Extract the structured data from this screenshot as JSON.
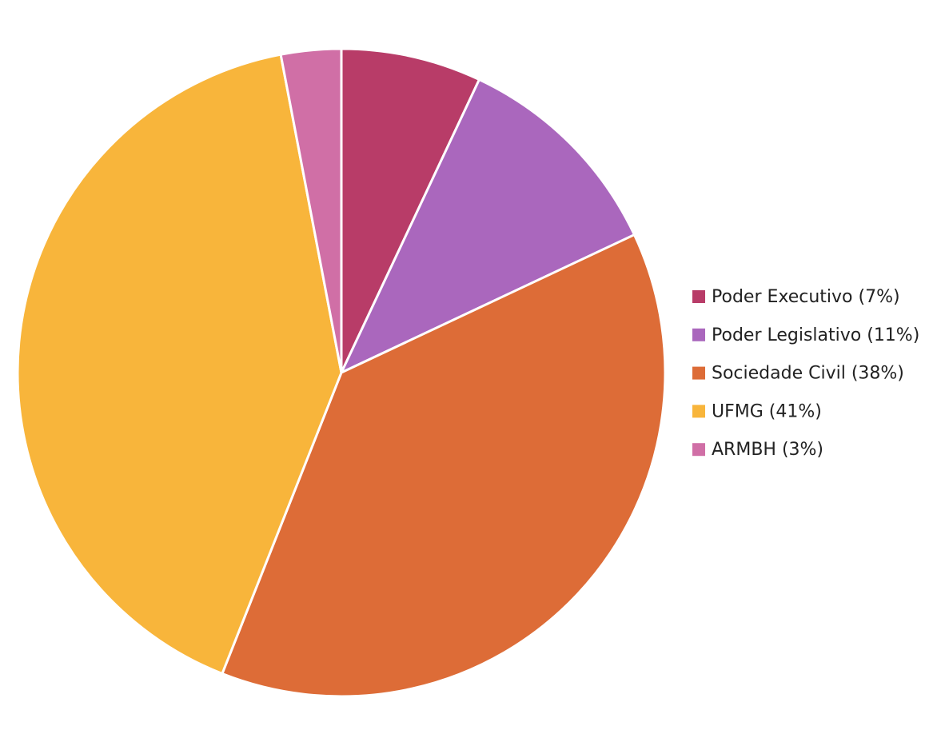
{
  "chart_data": {
    "type": "pie",
    "categories": [
      "Poder Executivo (7%)",
      "Poder Legislativo (11%)",
      "Sociedade Civil (38%)",
      "UFMG (41%)",
      "ARMBH (3%)"
    ],
    "values": [
      7,
      11,
      38,
      41,
      3
    ],
    "colors": [
      "#b83c68",
      "#aa67bd",
      "#dd6c37",
      "#f8b53b",
      "#d06fa6"
    ],
    "legend": "right"
  }
}
